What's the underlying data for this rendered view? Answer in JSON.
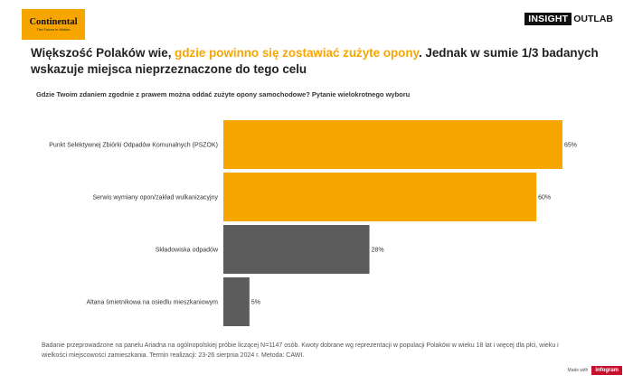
{
  "logo": {
    "name": "Continental",
    "tagline": "The Future in Motion"
  },
  "brand": {
    "part1": "INSIGHT",
    "part2": "OUTLAB"
  },
  "headline": {
    "part1": "Większość Polaków wie, ",
    "highlight": "gdzie powinno się zostawiać zużyte opony",
    "part2": ". Jednak w sumie 1/3 badanych wskazuje miejsca nieprzeznaczone do tego celu"
  },
  "question": "Gdzie Twoim zdaniem zgodnie z prawem można oddać zużyte opony samochodowe? Pytanie wielokrotnego wyboru",
  "chart_data": {
    "type": "bar",
    "orientation": "horizontal",
    "categories": [
      "Punkt Selektywnej Zbiórki Odpadów Komunalnych (PSZOK)",
      "Serwis wymiany opon/zakład wulkanizacyjny",
      "Składowiska odpadów",
      "Altana śmietnikowa na osiedlu mieszkaniowym"
    ],
    "values": [
      65,
      60,
      28,
      5
    ],
    "value_labels": [
      "65%",
      "60%",
      "28%",
      "5%"
    ],
    "colors": [
      "#f7a600",
      "#f7a600",
      "#5c5c5c",
      "#5c5c5c"
    ],
    "xlim": [
      0,
      100
    ],
    "grid": false,
    "legend": "none"
  },
  "footnote": "Badanie przeprowadzone na panelu Ariadna na ogólnopolskiej próbie liczącej N=1147 osób. Kwoty dobrane wg reprezentacji w populacji Polaków w wieku 18 lat i więcej dla płci, wieku i wielkości miejscowości zamieszkania. Termin realizacji: 23-26 sierpnia 2024 r. Metoda: CAWI.",
  "made_with": {
    "label": "Made with",
    "logo": "infogram"
  }
}
